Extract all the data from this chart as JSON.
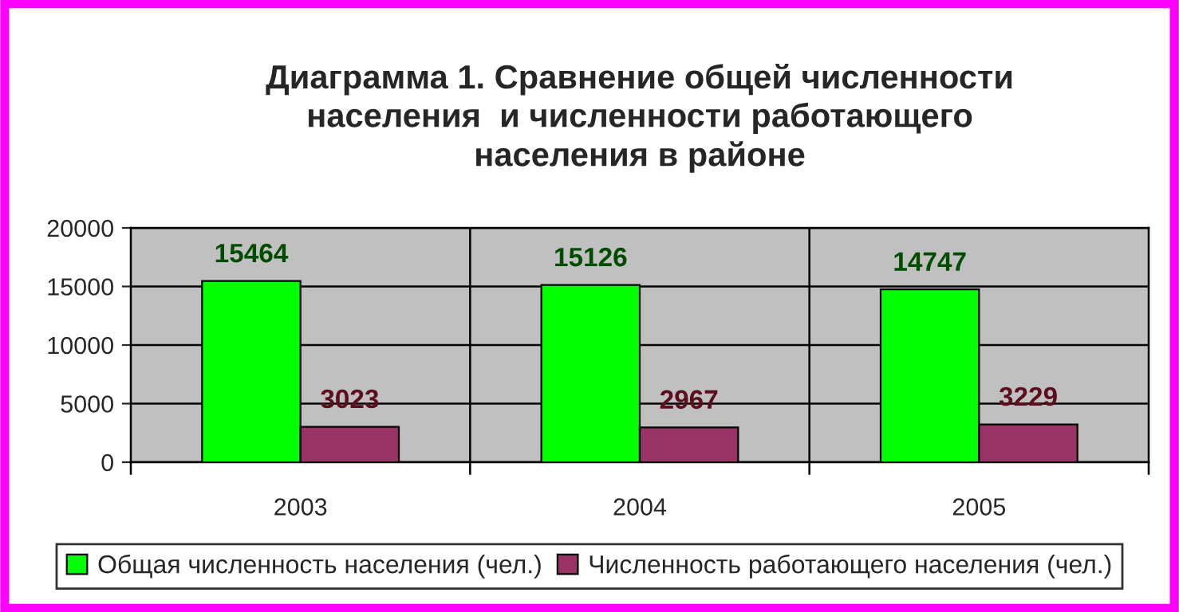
{
  "chart_data": {
    "type": "bar",
    "title": "Диаграмма 1. Сравнение общей численности\nнаселения  и численности работающего\nнаселения в районе",
    "categories": [
      "2003",
      "2004",
      "2005"
    ],
    "series": [
      {
        "name": "Общая численность населения (чел.)",
        "color": "#00ff00",
        "values": [
          15464,
          15126,
          14747
        ]
      },
      {
        "name": "Численность работающего населения (чел.)",
        "color": "#993366",
        "values": [
          3023,
          2967,
          3229
        ]
      }
    ],
    "ylim": [
      0,
      20000
    ],
    "yticks": [
      0,
      5000,
      10000,
      15000,
      20000
    ],
    "grid": true,
    "legend": "bottom",
    "data_labels": true
  }
}
